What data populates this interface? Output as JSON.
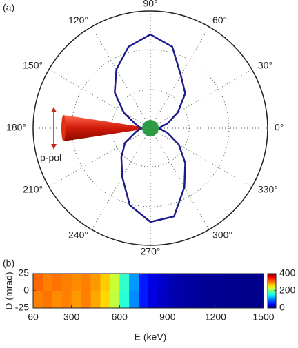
{
  "chart_data": [
    {
      "type": "polar",
      "panel_label": "(a)",
      "theta": [
        0,
        15,
        30,
        45,
        60,
        75,
        90,
        105,
        120,
        135,
        150,
        165,
        180,
        195,
        210,
        225,
        240,
        255,
        270,
        285,
        300,
        315,
        330,
        345
      ],
      "series": [
        {
          "color": "#1c1c8a",
          "values": [
            0.07,
            0.15,
            0.27,
            0.42,
            0.52,
            0.72,
            0.8,
            0.72,
            0.58,
            0.43,
            0.26,
            0.13,
            0.08,
            0.13,
            0.25,
            0.35,
            0.48,
            0.68,
            0.8,
            0.78,
            0.58,
            0.42,
            0.28,
            0.15
          ]
        }
      ],
      "rlim": [
        0,
        1
      ],
      "rgrid": [
        0.33,
        0.67
      ],
      "thetaticks": [
        {
          "value": 0,
          "label": "0°"
        },
        {
          "value": 30,
          "label": "30°"
        },
        {
          "value": 60,
          "label": "60°"
        },
        {
          "value": 90,
          "label": "90°"
        },
        {
          "value": 120,
          "label": "120°"
        },
        {
          "value": 150,
          "label": "150°"
        },
        {
          "value": 180,
          "label": "180°"
        },
        {
          "value": 210,
          "label": "210°"
        },
        {
          "value": 240,
          "label": "240°"
        },
        {
          "value": 270,
          "label": "270°"
        },
        {
          "value": 300,
          "label": "300°"
        },
        {
          "value": 330,
          "label": "330°"
        }
      ],
      "annotation": "p-pol"
    },
    {
      "type": "heatmap",
      "panel_label": "(b)",
      "xlabel": "E (keV)",
      "ylabel": "D (mrad)",
      "xlim": [
        60,
        1500
      ],
      "xticks": [
        60,
        300,
        600,
        900,
        1200,
        1500
      ],
      "ylim": [
        -25,
        25
      ],
      "yticks": [
        25,
        0,
        -25
      ],
      "x_bins": [
        60,
        120,
        180,
        240,
        300,
        360,
        420,
        480,
        540,
        600,
        660,
        720,
        780,
        840,
        900,
        960,
        1020,
        1080,
        1140,
        1200,
        1260,
        1320,
        1380,
        1440,
        1500
      ],
      "y_bins": [
        -25,
        0,
        25
      ],
      "z": [
        [
          300,
          305,
          295,
          300,
          290,
          300,
          285,
          265,
          225,
          165,
          105,
          60,
          38,
          28,
          20,
          15,
          12,
          10,
          8,
          8,
          6,
          6,
          5,
          5
        ],
        [
          310,
          300,
          305,
          300,
          295,
          300,
          290,
          270,
          230,
          170,
          110,
          60,
          40,
          30,
          20,
          15,
          12,
          10,
          8,
          8,
          6,
          6,
          5,
          5
        ]
      ],
      "colormap": "jet",
      "clim": [
        0,
        400
      ],
      "cticks": [
        0,
        200,
        400
      ]
    }
  ]
}
